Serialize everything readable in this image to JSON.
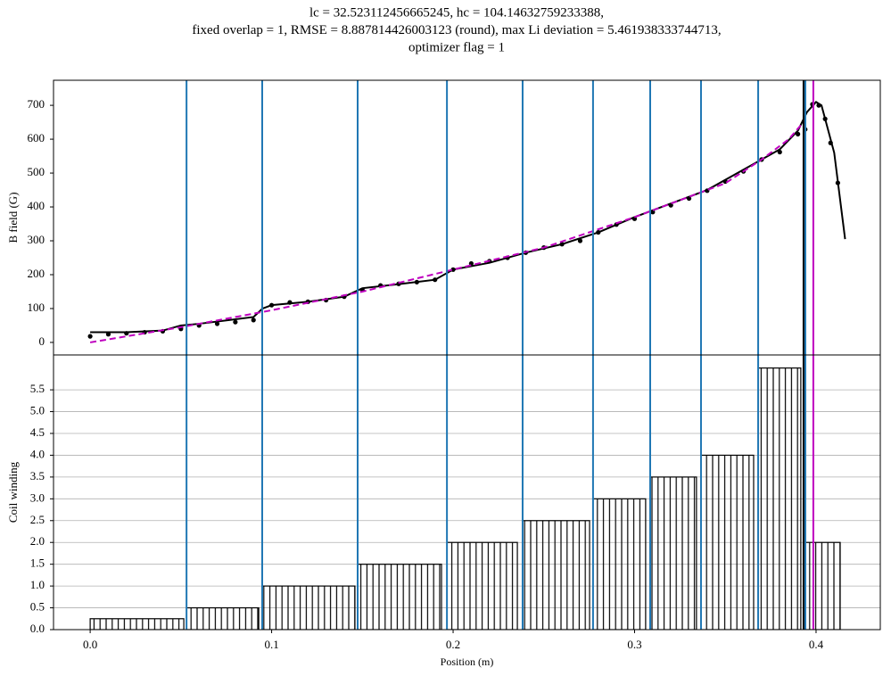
{
  "chart_data": [
    {
      "type": "line",
      "title": [
        "lc = 32.523112456665245, hc = 104.14632759233388,",
        "fixed overlap = 1, RMSE = 8.887814426003123 (round), max Li deviation = 5.461938333744713,",
        "optimizer flag = 1"
      ],
      "ylabel": "B field (G)",
      "xlim": [
        -0.0202,
        0.4354
      ],
      "ylim": [
        -37,
        774
      ],
      "yticks": [
        0,
        100,
        200,
        300,
        400,
        500,
        600,
        700
      ],
      "series": [
        {
          "style": "dots",
          "color": "#000000",
          "x": [
            0,
            0.01,
            0.02,
            0.03,
            0.04,
            0.05,
            0.06,
            0.07,
            0.08,
            0.09,
            0.1,
            0.11,
            0.12,
            0.13,
            0.14,
            0.15,
            0.16,
            0.17,
            0.18,
            0.19,
            0.2,
            0.21,
            0.22,
            0.23,
            0.24,
            0.25,
            0.26,
            0.27,
            0.28,
            0.29,
            0.3,
            0.31,
            0.32,
            0.33,
            0.34,
            0.35,
            0.36,
            0.37,
            0.38,
            0.39,
            0.394,
            0.398,
            0.4015,
            0.405,
            0.408,
            0.412
          ],
          "values": [
            18,
            24,
            27,
            30,
            33,
            40,
            50,
            55,
            60,
            66,
            110,
            118,
            120,
            125,
            135,
            155,
            168,
            173,
            178,
            185,
            215,
            233,
            240,
            250,
            265,
            280,
            290,
            300,
            325,
            348,
            365,
            385,
            405,
            425,
            448,
            475,
            505,
            540,
            562,
            615,
            629,
            703,
            700,
            660,
            589,
            471
          ]
        },
        {
          "style": "solid",
          "color": "#000000",
          "x": [
            0,
            0.02,
            0.04,
            0.05,
            0.06,
            0.09,
            0.095,
            0.1,
            0.12,
            0.14,
            0.15,
            0.17,
            0.19,
            0.2,
            0.22,
            0.24,
            0.26,
            0.28,
            0.3,
            0.32,
            0.34,
            0.36,
            0.37,
            0.38,
            0.39,
            0.395,
            0.4,
            0.403,
            0.41,
            0.416
          ],
          "values": [
            30,
            30,
            35,
            50,
            55,
            75,
            100,
            110,
            120,
            135,
            160,
            172,
            185,
            215,
            235,
            265,
            290,
            325,
            370,
            410,
            450,
            510,
            540,
            570,
            625,
            680,
            710,
            700,
            560,
            305
          ]
        },
        {
          "style": "dashed",
          "color": "#bf00bf",
          "x": [
            0,
            0.05,
            0.1,
            0.15,
            0.2,
            0.25,
            0.3,
            0.35,
            0.37,
            0.385,
            0.393
          ],
          "values": [
            0,
            45,
            95,
            150,
            215,
            280,
            370,
            470,
            540,
            600,
            650
          ]
        }
      ],
      "vlines": [
        {
          "x": 0.0531,
          "color": "#1f77b4"
        },
        {
          "x": 0.0948,
          "color": "#1f77b4"
        },
        {
          "x": 0.1474,
          "color": "#1f77b4"
        },
        {
          "x": 0.1966,
          "color": "#1f77b4"
        },
        {
          "x": 0.2383,
          "color": "#1f77b4"
        },
        {
          "x": 0.2771,
          "color": "#1f77b4"
        },
        {
          "x": 0.3086,
          "color": "#1f77b4"
        },
        {
          "x": 0.3366,
          "color": "#1f77b4"
        },
        {
          "x": 0.3681,
          "color": "#1f77b4"
        },
        {
          "x": 0.3941,
          "color": "#1f77b4"
        },
        {
          "x": 0.3931,
          "color": "#000000"
        },
        {
          "x": 0.3985,
          "color": "#bf00bf"
        }
      ]
    },
    {
      "type": "bar",
      "xlabel": "Position (m)",
      "ylabel": "Coil winding",
      "xlim": [
        -0.0202,
        0.4354
      ],
      "ylim": [
        0,
        6.3
      ],
      "grid": true,
      "xticks": [
        {
          "value": 0,
          "label": "0.0"
        },
        {
          "value": 0.1,
          "label": "0.1"
        },
        {
          "value": 0.2,
          "label": "0.2"
        },
        {
          "value": 0.3,
          "label": "0.3"
        },
        {
          "value": 0.4,
          "label": "0.4"
        }
      ],
      "yticks": [
        {
          "value": 0,
          "label": "0.0"
        },
        {
          "value": 0.5,
          "label": "0.5"
        },
        {
          "value": 1,
          "label": "1.0"
        },
        {
          "value": 1.5,
          "label": "1.5"
        },
        {
          "value": 2,
          "label": "2.0"
        },
        {
          "value": 2.5,
          "label": "2.5"
        },
        {
          "value": 3,
          "label": "3.0"
        },
        {
          "value": 3.5,
          "label": "3.5"
        },
        {
          "value": 4,
          "label": "4.0"
        },
        {
          "value": 4.5,
          "label": "4.5"
        },
        {
          "value": 5,
          "label": "5.0"
        },
        {
          "value": 5.5,
          "label": "5.5"
        }
      ],
      "x_start": [
        0,
        0.0531,
        0.0948,
        0.1474,
        0.1966,
        0.2383,
        0.2771,
        0.3086,
        0.3366,
        0.3681,
        0.3941
      ],
      "x_end": [
        0.0516,
        0.0929,
        0.1459,
        0.1936,
        0.2354,
        0.2752,
        0.3061,
        0.3341,
        0.3656,
        0.3916,
        0.4133
      ],
      "values": [
        0.25,
        0.5,
        1,
        1.5,
        2,
        2.5,
        3,
        3.5,
        4,
        6,
        2
      ],
      "color": "#000000",
      "vlines": [
        {
          "x": 0.0531,
          "color": "#1f77b4"
        },
        {
          "x": 0.0948,
          "color": "#1f77b4"
        },
        {
          "x": 0.1474,
          "color": "#1f77b4"
        },
        {
          "x": 0.1966,
          "color": "#1f77b4"
        },
        {
          "x": 0.2383,
          "color": "#1f77b4"
        },
        {
          "x": 0.2771,
          "color": "#1f77b4"
        },
        {
          "x": 0.3086,
          "color": "#1f77b4"
        },
        {
          "x": 0.3366,
          "color": "#1f77b4"
        },
        {
          "x": 0.3681,
          "color": "#1f77b4"
        },
        {
          "x": 0.3941,
          "color": "#1f77b4"
        },
        {
          "x": 0.3931,
          "color": "#000000"
        },
        {
          "x": 0.3985,
          "color": "#bf00bf"
        }
      ]
    }
  ]
}
